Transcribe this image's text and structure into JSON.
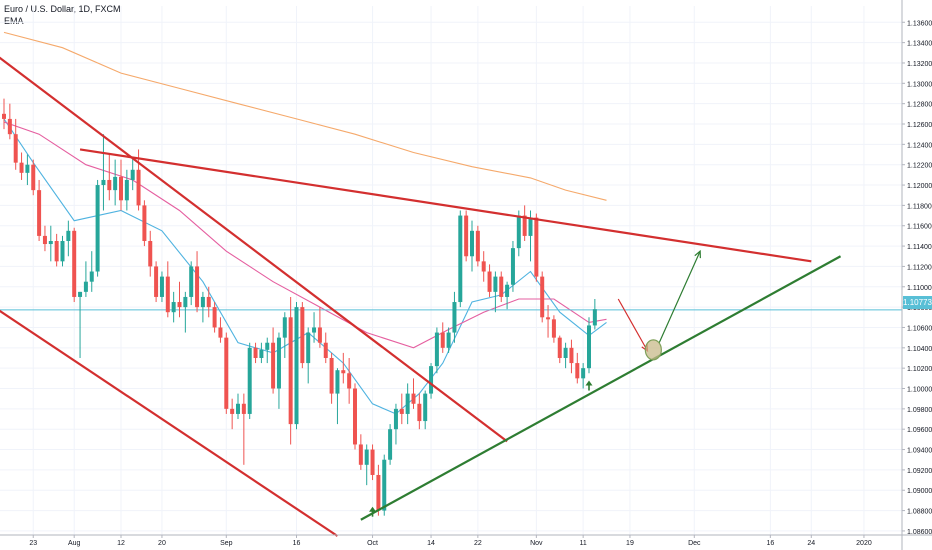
{
  "header": {
    "title": "Euro / U.S. Dollar, 1D, FXCM",
    "indicator": "EMA"
  },
  "colors": {
    "up": "#26a69a",
    "down": "#ef5350",
    "ema_fast": "#4fb3e0",
    "ema_mid": "#e55fa0",
    "ema_slow": "#f5a96b",
    "trend_red": "#d32f2f",
    "trend_green": "#2e7d32",
    "price_line": "#58bfd6",
    "grid": "#f0f3fa"
  },
  "chart_data": {
    "type": "candlestick",
    "symbol": "EURUSD",
    "interval": "1D",
    "ylim": [
      1.0856,
      1.1376
    ],
    "yticks": [
      "1.13600",
      "1.13400",
      "1.13200",
      "1.13000",
      "1.12800",
      "1.12600",
      "1.12400",
      "1.12200",
      "1.12000",
      "1.11800",
      "1.11600",
      "1.11400",
      "1.11200",
      "1.11000",
      "1.10800",
      "1.10600",
      "1.10400",
      "1.10200",
      "1.10000",
      "1.09800",
      "1.09600",
      "1.09400",
      "1.09200",
      "1.09000",
      "1.08800",
      "1.08600"
    ],
    "xticks": [
      {
        "i": 5,
        "label": "23"
      },
      {
        "i": 12,
        "label": "Aug"
      },
      {
        "i": 20,
        "label": "12"
      },
      {
        "i": 27,
        "label": "20"
      },
      {
        "i": 38,
        "label": "Sep"
      },
      {
        "i": 50,
        "label": "16"
      },
      {
        "i": 63,
        "label": "Oct"
      },
      {
        "i": 73,
        "label": "14"
      },
      {
        "i": 81,
        "label": "22"
      },
      {
        "i": 91,
        "label": "Nov"
      },
      {
        "i": 99,
        "label": "11"
      },
      {
        "i": 107,
        "label": "19"
      },
      {
        "i": 118,
        "label": "Dec"
      },
      {
        "i": 131,
        "label": "16"
      },
      {
        "i": 138,
        "label": "24"
      },
      {
        "i": 147,
        "label": "2020"
      }
    ],
    "last_price": "1.10773",
    "last_price_value": 1.10773,
    "candles": [
      [
        1.127,
        1.1285,
        1.1255,
        1.1265
      ],
      [
        1.1265,
        1.128,
        1.1245,
        1.125
      ],
      [
        1.125,
        1.1265,
        1.1215,
        1.1222
      ],
      [
        1.1222,
        1.1232,
        1.1205,
        1.1212
      ],
      [
        1.1212,
        1.123,
        1.12,
        1.122
      ],
      [
        1.122,
        1.1225,
        1.119,
        1.1195
      ],
      [
        1.1195,
        1.1205,
        1.1145,
        1.115
      ],
      [
        1.115,
        1.116,
        1.1135,
        1.1142
      ],
      [
        1.1142,
        1.116,
        1.1125,
        1.1145
      ],
      [
        1.1145,
        1.1152,
        1.112,
        1.1125
      ],
      [
        1.1125,
        1.115,
        1.112,
        1.1145
      ],
      [
        1.1145,
        1.1165,
        1.113,
        1.1155
      ],
      [
        1.1155,
        1.1158,
        1.1085,
        1.109
      ],
      [
        1.109,
        1.1095,
        1.103,
        1.1095
      ],
      [
        1.1095,
        1.1125,
        1.109,
        1.1105
      ],
      [
        1.1105,
        1.1135,
        1.1095,
        1.1115
      ],
      [
        1.1115,
        1.1205,
        1.111,
        1.12
      ],
      [
        1.12,
        1.125,
        1.1175,
        1.1205
      ],
      [
        1.1205,
        1.123,
        1.1185,
        1.1195
      ],
      [
        1.1195,
        1.1225,
        1.118,
        1.1208
      ],
      [
        1.1208,
        1.1225,
        1.1175,
        1.1185
      ],
      [
        1.1185,
        1.1215,
        1.1175,
        1.1205
      ],
      [
        1.1205,
        1.1228,
        1.1195,
        1.1215
      ],
      [
        1.1215,
        1.1235,
        1.1175,
        1.118
      ],
      [
        1.118,
        1.1185,
        1.114,
        1.1145
      ],
      [
        1.1145,
        1.1155,
        1.111,
        1.112
      ],
      [
        1.112,
        1.1125,
        1.1085,
        1.109
      ],
      [
        1.109,
        1.1115,
        1.1085,
        1.111
      ],
      [
        1.111,
        1.1125,
        1.107,
        1.1075
      ],
      [
        1.1075,
        1.1095,
        1.1065,
        1.1085
      ],
      [
        1.1085,
        1.1105,
        1.107,
        1.108
      ],
      [
        1.108,
        1.1095,
        1.1055,
        1.109
      ],
      [
        1.109,
        1.1125,
        1.1082,
        1.112
      ],
      [
        1.112,
        1.1135,
        1.1075,
        1.108
      ],
      [
        1.108,
        1.1095,
        1.1065,
        1.109
      ],
      [
        1.109,
        1.11,
        1.107,
        1.108
      ],
      [
        1.108,
        1.1085,
        1.1055,
        1.106
      ],
      [
        1.106,
        1.107,
        1.1045,
        1.105
      ],
      [
        1.105,
        1.1055,
        1.0975,
        1.098
      ],
      [
        1.098,
        1.099,
        1.096,
        1.0975
      ],
      [
        1.0975,
        1.0995,
        1.097,
        1.0985
      ],
      [
        1.0985,
        1.0995,
        1.0925,
        1.0975
      ],
      [
        1.0975,
        1.1045,
        1.097,
        1.104
      ],
      [
        1.104,
        1.1045,
        1.1025,
        1.103
      ],
      [
        1.103,
        1.1045,
        1.1025,
        1.1038
      ],
      [
        1.1038,
        1.105,
        1.1025,
        1.1045
      ],
      [
        1.1045,
        1.106,
        1.0995,
        1.1
      ],
      [
        1.1,
        1.1055,
        1.098,
        1.105
      ],
      [
        1.105,
        1.1075,
        1.103,
        1.107
      ],
      [
        1.107,
        1.109,
        1.0945,
        1.0965
      ],
      [
        1.0965,
        1.1085,
        1.096,
        1.108
      ],
      [
        1.108,
        1.1085,
        1.102,
        1.1025
      ],
      [
        1.1025,
        1.106,
        1.1005,
        1.1055
      ],
      [
        1.1055,
        1.1075,
        1.1045,
        1.106
      ],
      [
        1.106,
        1.108,
        1.104,
        1.1045
      ],
      [
        1.1045,
        1.1055,
        1.1025,
        1.103
      ],
      [
        1.103,
        1.1035,
        1.0985,
        1.0995
      ],
      [
        1.0995,
        1.102,
        1.0965,
        1.1018
      ],
      [
        1.1018,
        1.1035,
        1.1005,
        1.1015
      ],
      [
        1.1015,
        1.103,
        1.0985,
        1.1
      ],
      [
        1.1,
        1.1005,
        1.094,
        1.0945
      ],
      [
        1.0945,
        1.0955,
        1.092,
        1.0925
      ],
      [
        1.0925,
        1.0945,
        1.0905,
        1.094
      ],
      [
        1.094,
        1.0945,
        1.091,
        1.0915
      ],
      [
        1.0915,
        1.0925,
        1.0875,
        1.088
      ],
      [
        1.088,
        1.0935,
        1.0875,
        1.093
      ],
      [
        1.093,
        1.0965,
        1.0925,
        1.096
      ],
      [
        1.096,
        1.0985,
        1.0945,
        1.098
      ],
      [
        1.098,
        1.0995,
        1.0965,
        1.0975
      ],
      [
        1.0975,
        1.1005,
        1.0965,
        1.0995
      ],
      [
        1.0995,
        1.101,
        1.098,
        1.0985
      ],
      [
        1.0985,
        1.0995,
        1.096,
        1.0968
      ],
      [
        1.0968,
        1.0998,
        1.096,
        1.0995
      ],
      [
        1.0995,
        1.1025,
        1.099,
        1.1022
      ],
      [
        1.1022,
        1.106,
        1.1015,
        1.1055
      ],
      [
        1.1055,
        1.1065,
        1.1035,
        1.104
      ],
      [
        1.104,
        1.106,
        1.1035,
        1.1055
      ],
      [
        1.1055,
        1.1095,
        1.1045,
        1.1085
      ],
      [
        1.1085,
        1.1175,
        1.108,
        1.117
      ],
      [
        1.117,
        1.1175,
        1.1125,
        1.113
      ],
      [
        1.113,
        1.1165,
        1.1115,
        1.1155
      ],
      [
        1.1155,
        1.116,
        1.112,
        1.1125
      ],
      [
        1.1125,
        1.1135,
        1.1105,
        1.1115
      ],
      [
        1.1115,
        1.1122,
        1.109,
        1.1095
      ],
      [
        1.1095,
        1.1115,
        1.1075,
        1.111
      ],
      [
        1.111,
        1.1115,
        1.1085,
        1.109
      ],
      [
        1.109,
        1.1105,
        1.1078,
        1.1102
      ],
      [
        1.1102,
        1.1145,
        1.1095,
        1.1138
      ],
      [
        1.1138,
        1.1175,
        1.113,
        1.117
      ],
      [
        1.117,
        1.118,
        1.1145,
        1.115
      ],
      [
        1.115,
        1.1175,
        1.1125,
        1.1168
      ],
      [
        1.1168,
        1.1172,
        1.1105,
        1.111
      ],
      [
        1.111,
        1.1115,
        1.1065,
        1.107
      ],
      [
        1.107,
        1.1082,
        1.105,
        1.1068
      ],
      [
        1.1068,
        1.1072,
        1.1045,
        1.105
      ],
      [
        1.105,
        1.1052,
        1.1025,
        1.103
      ],
      [
        1.103,
        1.1045,
        1.102,
        1.104
      ],
      [
        1.104,
        1.1048,
        1.1015,
        1.1025
      ],
      [
        1.1025,
        1.1035,
        1.1005,
        1.101
      ],
      [
        1.101,
        1.1025,
        1.1,
        1.102
      ],
      [
        1.102,
        1.107,
        1.1015,
        1.1062
      ],
      [
        1.1062,
        1.1088,
        1.1058,
        1.1078
      ]
    ],
    "ema": [
      {
        "name": "EMA",
        "color": "#4fb3e0",
        "points": [
          [
            0,
            1.1265
          ],
          [
            5,
            1.1222
          ],
          [
            12,
            1.1165
          ],
          [
            20,
            1.1175
          ],
          [
            27,
            1.1155
          ],
          [
            34,
            1.1105
          ],
          [
            40,
            1.1045
          ],
          [
            46,
            1.1035
          ],
          [
            52,
            1.1055
          ],
          [
            58,
            1.1025
          ],
          [
            63,
            1.0985
          ],
          [
            67,
            1.0975
          ],
          [
            71,
            1.0995
          ],
          [
            75,
            1.1025
          ],
          [
            80,
            1.1085
          ],
          [
            85,
            1.1092
          ],
          [
            90,
            1.1115
          ],
          [
            95,
            1.1075
          ],
          [
            100,
            1.1052
          ],
          [
            103,
            1.1065
          ]
        ]
      },
      {
        "name": "EMA",
        "color": "#e55fa0",
        "points": [
          [
            0,
            1.1262
          ],
          [
            6,
            1.125
          ],
          [
            14,
            1.122
          ],
          [
            22,
            1.1205
          ],
          [
            30,
            1.1175
          ],
          [
            38,
            1.1135
          ],
          [
            46,
            1.1105
          ],
          [
            54,
            1.108
          ],
          [
            62,
            1.1055
          ],
          [
            70,
            1.104
          ],
          [
            76,
            1.1058
          ],
          [
            82,
            1.1075
          ],
          [
            88,
            1.1088
          ],
          [
            94,
            1.1088
          ],
          [
            100,
            1.1065
          ],
          [
            103,
            1.1068
          ]
        ]
      },
      {
        "name": "EMA",
        "color": "#f5a96b",
        "points": [
          [
            0,
            1.135
          ],
          [
            10,
            1.1335
          ],
          [
            20,
            1.131
          ],
          [
            30,
            1.1295
          ],
          [
            40,
            1.128
          ],
          [
            50,
            1.1265
          ],
          [
            60,
            1.125
          ],
          [
            70,
            1.1232
          ],
          [
            80,
            1.1218
          ],
          [
            90,
            1.1207
          ],
          [
            96,
            1.1195
          ],
          [
            103,
            1.1185
          ]
        ]
      }
    ],
    "trendlines": [
      {
        "color": "#d32f2f",
        "from": [
          -3,
          1.1335
        ],
        "to": [
          86,
          1.0948
        ]
      },
      {
        "color": "#d32f2f",
        "from": [
          13,
          1.1235
        ],
        "to": [
          138,
          1.1125
        ]
      },
      {
        "color": "#d32f2f",
        "from": [
          -3,
          1.1085
        ],
        "to": [
          57,
          1.0855
        ]
      },
      {
        "color": "#2e7d32",
        "from": [
          61,
          1.0871
        ],
        "to": [
          143,
          1.113
        ]
      }
    ],
    "arrows": [
      {
        "color": "#d32f2f",
        "from": [
          105,
          1.1088
        ],
        "to": [
          110,
          1.1037
        ]
      },
      {
        "color": "#2e7d32",
        "from": [
          112,
          1.1045
        ],
        "to": [
          119,
          1.1135
        ]
      }
    ],
    "markers": [
      {
        "type": "circle",
        "x": 111,
        "y": 1.1038
      },
      {
        "type": "up-arrow",
        "x": 63,
        "y": 1.0874
      },
      {
        "type": "up-arrow",
        "x": 100,
        "y": 1.0998
      }
    ]
  }
}
